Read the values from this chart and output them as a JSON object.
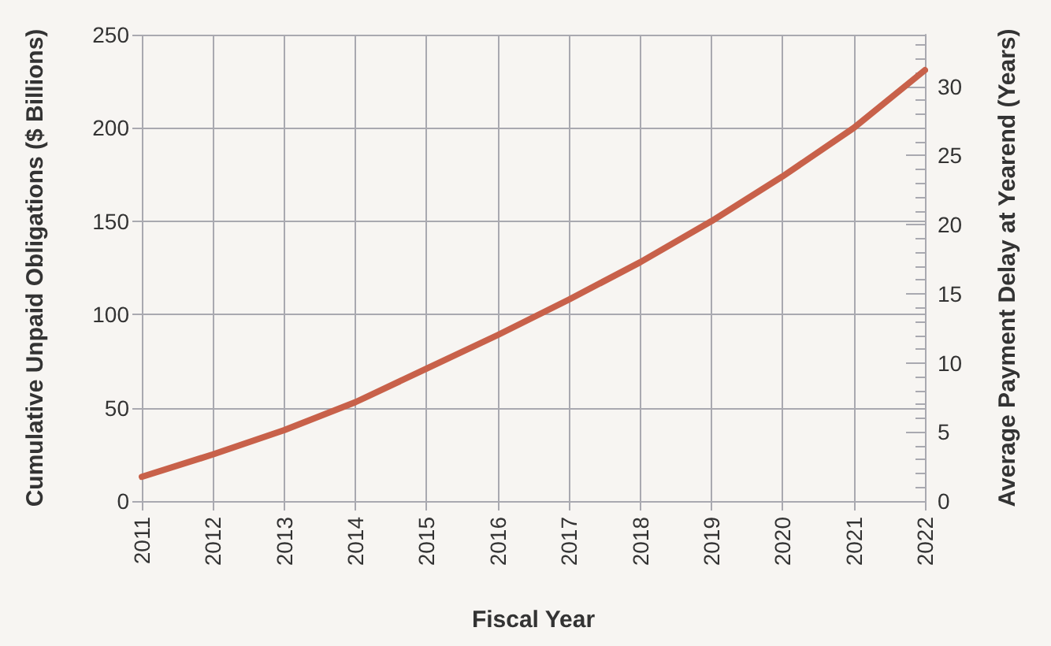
{
  "chart_data": {
    "type": "line",
    "xlabel": "Fiscal Year",
    "ylabel": "Cumulative Unpaid Obligations ($ Billions)",
    "y2label": "Average Payment Delay at Yearend (Years)",
    "categories": [
      "2011",
      "2012",
      "2013",
      "2014",
      "2015",
      "2016",
      "2017",
      "2018",
      "2019",
      "2020",
      "2021",
      "2022"
    ],
    "series": [
      {
        "color": "#c8614a",
        "values": [
          13,
          25,
          38,
          53,
          71,
          89,
          108,
          128,
          150,
          174,
          200,
          231
        ]
      }
    ],
    "ylim": [
      0,
      250
    ],
    "yticks": [
      0,
      50,
      100,
      150,
      200,
      250
    ],
    "y2lim": [
      0,
      33.75
    ],
    "y2ticks": [
      0,
      5,
      10,
      15,
      20,
      25,
      30
    ],
    "grid": true,
    "marker": "none",
    "line_style": "solid"
  }
}
